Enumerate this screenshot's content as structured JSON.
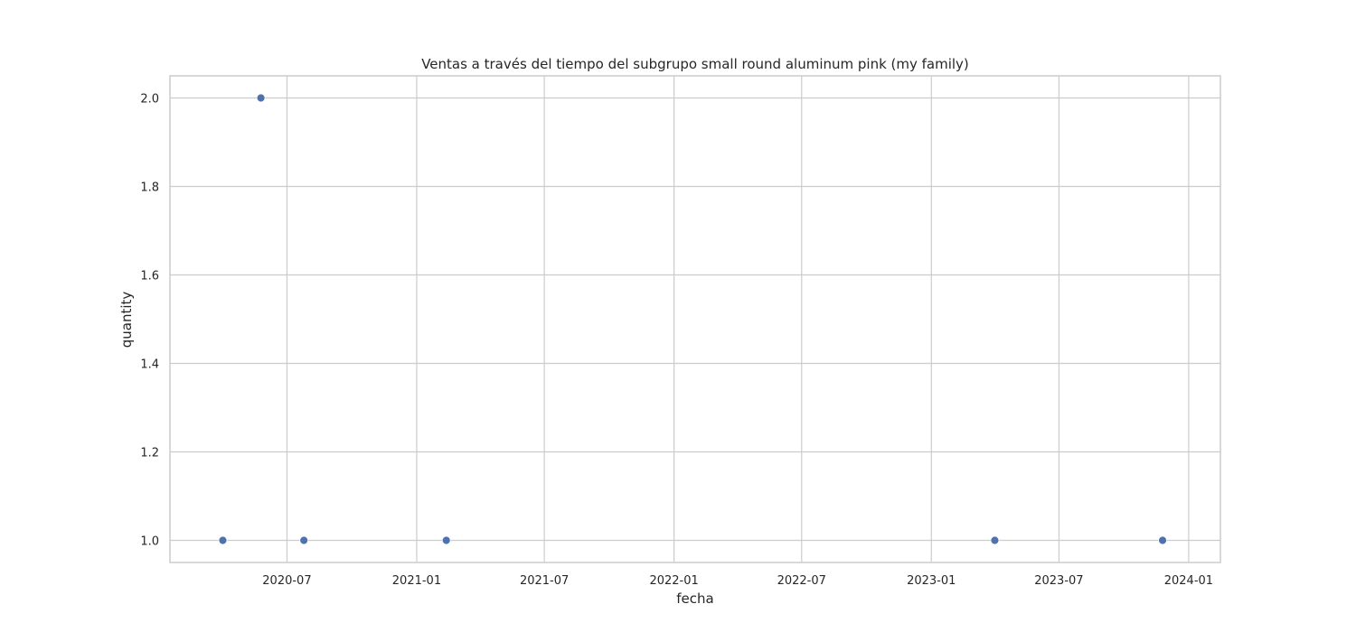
{
  "chart_data": {
    "type": "scatter",
    "title": "Ventas a través del tiempo del subgrupo small round aluminum pink (my family)",
    "xlabel": "fecha",
    "ylabel": "quantity",
    "x_scale": "date",
    "xlim": [
      "2020-01-17",
      "2024-02-15"
    ],
    "ylim": [
      0.95,
      2.05
    ],
    "x_ticks": [
      {
        "value": "2020-07-01",
        "label": "2020-07"
      },
      {
        "value": "2021-01-01",
        "label": "2021-01"
      },
      {
        "value": "2021-07-01",
        "label": "2021-07"
      },
      {
        "value": "2022-01-01",
        "label": "2022-01"
      },
      {
        "value": "2022-07-01",
        "label": "2022-07"
      },
      {
        "value": "2023-01-01",
        "label": "2023-01"
      },
      {
        "value": "2023-07-01",
        "label": "2023-07"
      },
      {
        "value": "2024-01-01",
        "label": "2024-01"
      }
    ],
    "y_ticks": [
      {
        "value": 1.0,
        "label": "1.0"
      },
      {
        "value": 1.2,
        "label": "1.2"
      },
      {
        "value": 1.4,
        "label": "1.4"
      },
      {
        "value": 1.6,
        "label": "1.6"
      },
      {
        "value": 1.8,
        "label": "1.8"
      },
      {
        "value": 2.0,
        "label": "2.0"
      }
    ],
    "grid": true,
    "color": "#4c72b0",
    "points": [
      {
        "x": "2020-04-01",
        "y": 1
      },
      {
        "x": "2020-05-25",
        "y": 2
      },
      {
        "x": "2020-07-25",
        "y": 1
      },
      {
        "x": "2021-02-12",
        "y": 1
      },
      {
        "x": "2023-04-01",
        "y": 1
      },
      {
        "x": "2023-11-25",
        "y": 1
      }
    ]
  }
}
